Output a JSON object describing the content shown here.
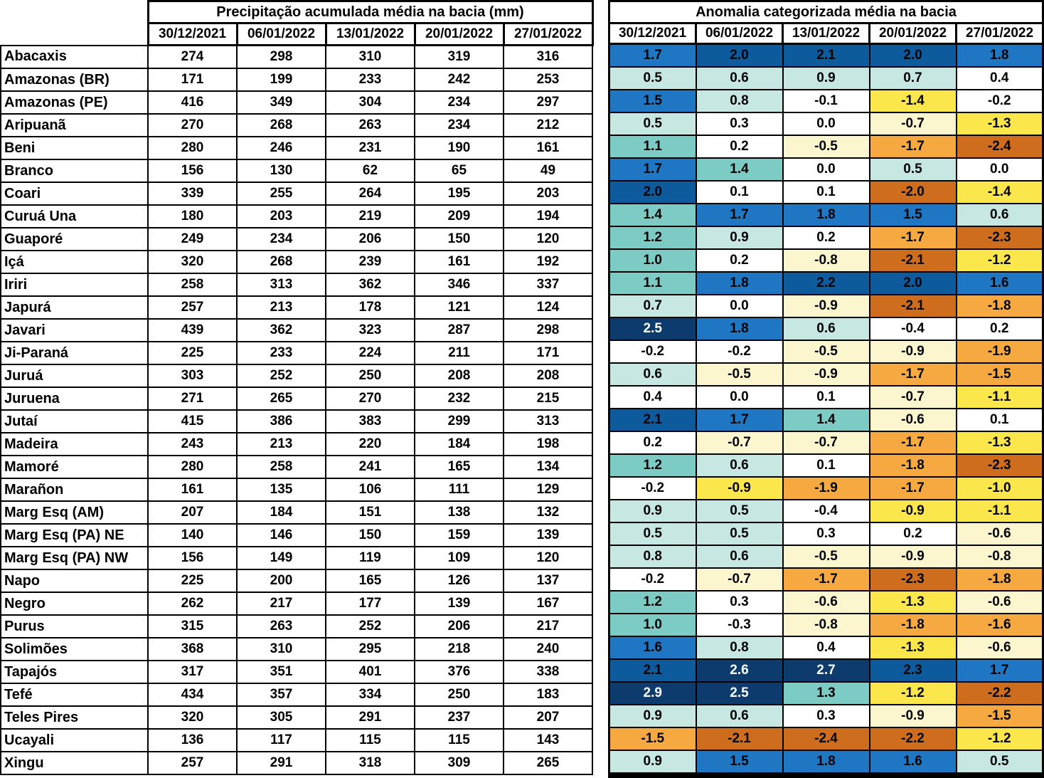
{
  "chart_data": [
    {
      "type": "table",
      "title": "Precipitação acumulada média na bacia (mm)",
      "columns": [
        "30/12/2021",
        "06/01/2022",
        "13/01/2022",
        "20/01/2022",
        "27/01/2022"
      ],
      "row_labels": [
        "Abacaxis",
        "Amazonas (BR)",
        "Amazonas (PE)",
        "Aripuanã",
        "Beni",
        "Branco",
        "Coari",
        "Curuá Una",
        "Guaporé",
        "Içá",
        "Iriri",
        "Japurá",
        "Javari",
        "Ji-Paraná",
        "Juruá",
        "Juruena",
        "Jutaí",
        "Madeira",
        "Mamoré",
        "Marañon",
        "Marg Esq (AM)",
        "Marg Esq (PA) NE",
        "Marg Esq (PA) NW",
        "Napo",
        "Negro",
        "Purus",
        "Solimões",
        "Tapajós",
        "Tefé",
        "Teles Pires",
        "Ucayali",
        "Xingu"
      ],
      "values": [
        [
          274,
          298,
          310,
          319,
          316
        ],
        [
          171,
          199,
          233,
          242,
          253
        ],
        [
          416,
          349,
          304,
          234,
          297
        ],
        [
          270,
          268,
          263,
          234,
          212
        ],
        [
          280,
          246,
          231,
          190,
          161
        ],
        [
          156,
          130,
          62,
          65,
          49
        ],
        [
          339,
          255,
          264,
          195,
          203
        ],
        [
          180,
          203,
          219,
          209,
          194
        ],
        [
          249,
          234,
          206,
          150,
          120
        ],
        [
          320,
          268,
          239,
          161,
          192
        ],
        [
          258,
          313,
          362,
          346,
          337
        ],
        [
          257,
          213,
          178,
          121,
          124
        ],
        [
          439,
          362,
          323,
          287,
          298
        ],
        [
          225,
          233,
          224,
          211,
          171
        ],
        [
          303,
          252,
          250,
          208,
          208
        ],
        [
          271,
          265,
          270,
          232,
          215
        ],
        [
          415,
          386,
          383,
          299,
          313
        ],
        [
          243,
          213,
          220,
          184,
          198
        ],
        [
          280,
          258,
          241,
          165,
          134
        ],
        [
          161,
          135,
          106,
          111,
          129
        ],
        [
          207,
          184,
          151,
          138,
          132
        ],
        [
          140,
          146,
          150,
          159,
          139
        ],
        [
          156,
          149,
          119,
          109,
          120
        ],
        [
          225,
          200,
          165,
          126,
          137
        ],
        [
          262,
          217,
          177,
          139,
          167
        ],
        [
          315,
          263,
          252,
          206,
          217
        ],
        [
          368,
          310,
          295,
          218,
          240
        ],
        [
          317,
          351,
          401,
          376,
          338
        ],
        [
          434,
          357,
          334,
          250,
          183
        ],
        [
          320,
          305,
          291,
          237,
          207
        ],
        [
          136,
          117,
          115,
          115,
          143
        ],
        [
          257,
          291,
          318,
          309,
          265
        ]
      ]
    },
    {
      "type": "table",
      "title": "Anomalia categorizada média na bacia",
      "columns": [
        "30/12/2021",
        "06/01/2022",
        "13/01/2022",
        "20/01/2022",
        "27/01/2022"
      ],
      "row_labels": [
        "Abacaxis",
        "Amazonas (BR)",
        "Amazonas (PE)",
        "Aripuanã",
        "Beni",
        "Branco",
        "Coari",
        "Curuá Una",
        "Guaporé",
        "Içá",
        "Iriri",
        "Japurá",
        "Javari",
        "Ji-Paraná",
        "Juruá",
        "Juruena",
        "Jutaí",
        "Madeira",
        "Mamoré",
        "Marañon",
        "Marg Esq (AM)",
        "Marg Esq (PA) NE",
        "Marg Esq (PA) NW",
        "Napo",
        "Negro",
        "Purus",
        "Solimões",
        "Tapajós",
        "Tefé",
        "Teles Pires",
        "Ucayali",
        "Xingu"
      ],
      "values": [
        [
          "1.7",
          "2.0",
          "2.1",
          "2.0",
          "1.8"
        ],
        [
          "0.5",
          "0.6",
          "0.9",
          "0.7",
          "0.4"
        ],
        [
          "1.5",
          "0.8",
          "-0.1",
          "-1.4",
          "-0.2"
        ],
        [
          "0.5",
          "0.3",
          "0.0",
          "-0.7",
          "-1.3"
        ],
        [
          "1.1",
          "0.2",
          "-0.5",
          "-1.7",
          "-2.4"
        ],
        [
          "1.7",
          "1.4",
          "0.0",
          "0.5",
          "0.0"
        ],
        [
          "2.0",
          "0.1",
          "0.1",
          "-2.0",
          "-1.4"
        ],
        [
          "1.4",
          "1.7",
          "1.8",
          "1.5",
          "0.6"
        ],
        [
          "1.2",
          "0.9",
          "0.2",
          "-1.7",
          "-2.3"
        ],
        [
          "1.0",
          "0.2",
          "-0.8",
          "-2.1",
          "-1.2"
        ],
        [
          "1.1",
          "1.8",
          "2.2",
          "2.0",
          "1.6"
        ],
        [
          "0.7",
          "0.0",
          "-0.9",
          "-2.1",
          "-1.8"
        ],
        [
          "2.5",
          "1.8",
          "0.6",
          "-0.4",
          "0.2"
        ],
        [
          "-0.2",
          "-0.2",
          "-0.5",
          "-0.9",
          "-1.9"
        ],
        [
          "0.6",
          "-0.5",
          "-0.9",
          "-1.7",
          "-1.5"
        ],
        [
          "0.4",
          "0.0",
          "0.1",
          "-0.7",
          "-1.1"
        ],
        [
          "2.1",
          "1.7",
          "1.4",
          "-0.6",
          "0.1"
        ],
        [
          "0.2",
          "-0.7",
          "-0.7",
          "-1.7",
          "-1.3"
        ],
        [
          "1.2",
          "0.6",
          "0.1",
          "-1.8",
          "-2.3"
        ],
        [
          "-0.2",
          "-0.9",
          "-1.9",
          "-1.7",
          "-1.0"
        ],
        [
          "0.9",
          "0.5",
          "-0.4",
          "-0.9",
          "-1.1"
        ],
        [
          "0.5",
          "0.5",
          "0.3",
          "0.2",
          "-0.6"
        ],
        [
          "0.8",
          "0.6",
          "-0.5",
          "-0.9",
          "-0.8"
        ],
        [
          "-0.2",
          "-0.7",
          "-1.7",
          "-2.3",
          "-1.8"
        ],
        [
          "1.2",
          "0.3",
          "-0.6",
          "-1.3",
          "-0.6"
        ],
        [
          "1.0",
          "-0.3",
          "-0.8",
          "-1.8",
          "-1.6"
        ],
        [
          "1.6",
          "0.8",
          "0.4",
          "-1.3",
          "-0.6"
        ],
        [
          "2.1",
          "2.6",
          "2.7",
          "2.3",
          "1.7"
        ],
        [
          "2.9",
          "2.5",
          "1.3",
          "-1.2",
          "-2.2"
        ],
        [
          "0.9",
          "0.6",
          "0.3",
          "-0.9",
          "-1.5"
        ],
        [
          "-1.5",
          "-2.1",
          "-2.4",
          "-2.2",
          "-1.2"
        ],
        [
          "0.9",
          "1.5",
          "1.8",
          "1.6",
          "0.5"
        ]
      ],
      "cell_categories": [
        [
          "mb",
          "db",
          "db",
          "db",
          "mb"
        ],
        [
          "lc",
          "lc",
          "lc",
          "lc",
          "w"
        ],
        [
          "mb",
          "lc",
          "w",
          "y",
          "w"
        ],
        [
          "lc",
          "w",
          "w",
          "py",
          "y"
        ],
        [
          "mc",
          "w",
          "py",
          "o",
          "do"
        ],
        [
          "mb",
          "mc",
          "w",
          "lc",
          "w"
        ],
        [
          "db",
          "w",
          "w",
          "do",
          "y"
        ],
        [
          "mc",
          "mb",
          "mb",
          "mb",
          "lc"
        ],
        [
          "mc",
          "lc",
          "w",
          "o",
          "do"
        ],
        [
          "mc",
          "w",
          "py",
          "do",
          "y"
        ],
        [
          "mc",
          "mb",
          "db",
          "db",
          "mb"
        ],
        [
          "lc",
          "w",
          "py",
          "do",
          "o"
        ],
        [
          "nv",
          "mb",
          "lc",
          "w",
          "w"
        ],
        [
          "w",
          "w",
          "py",
          "py",
          "o"
        ],
        [
          "lc",
          "py",
          "py",
          "o",
          "o"
        ],
        [
          "w",
          "w",
          "w",
          "py",
          "y"
        ],
        [
          "db",
          "mb",
          "mc",
          "py",
          "w"
        ],
        [
          "w",
          "py",
          "py",
          "o",
          "y"
        ],
        [
          "mc",
          "lc",
          "w",
          "o",
          "do"
        ],
        [
          "w",
          "y",
          "o",
          "o",
          "y"
        ],
        [
          "lc",
          "lc",
          "w",
          "y",
          "y"
        ],
        [
          "lc",
          "lc",
          "w",
          "w",
          "py"
        ],
        [
          "lc",
          "lc",
          "py",
          "py",
          "py"
        ],
        [
          "w",
          "py",
          "o",
          "do",
          "o"
        ],
        [
          "mc",
          "w",
          "py",
          "y",
          "py"
        ],
        [
          "mc",
          "w",
          "py",
          "o",
          "o"
        ],
        [
          "mb",
          "lc",
          "w",
          "y",
          "py"
        ],
        [
          "db",
          "nv",
          "nv",
          "db",
          "mb"
        ],
        [
          "nv",
          "nv",
          "mc",
          "y",
          "do"
        ],
        [
          "lc",
          "lc",
          "w",
          "py",
          "o"
        ],
        [
          "o",
          "do",
          "do",
          "do",
          "y"
        ],
        [
          "lc",
          "mb",
          "mb",
          "mb",
          "lc"
        ]
      ],
      "category_colors": {
        "nv": {
          "bg": "#0D3B6E",
          "fg": "#FFFFFF"
        },
        "db": {
          "bg": "#0D5A9C",
          "fg": "#000000"
        },
        "mb": {
          "bg": "#1F76C2",
          "fg": "#000000"
        },
        "mc": {
          "bg": "#7DCBC5",
          "fg": "#000000"
        },
        "lc": {
          "bg": "#C7E7E3",
          "fg": "#000000"
        },
        "w": {
          "bg": "#FFFFFF",
          "fg": "#000000"
        },
        "py": {
          "bg": "#FCF6CF",
          "fg": "#000000"
        },
        "y": {
          "bg": "#FBE64C",
          "fg": "#000000"
        },
        "o": {
          "bg": "#F7A941",
          "fg": "#000000"
        },
        "do": {
          "bg": "#CF6D1E",
          "fg": "#000000"
        }
      }
    }
  ]
}
